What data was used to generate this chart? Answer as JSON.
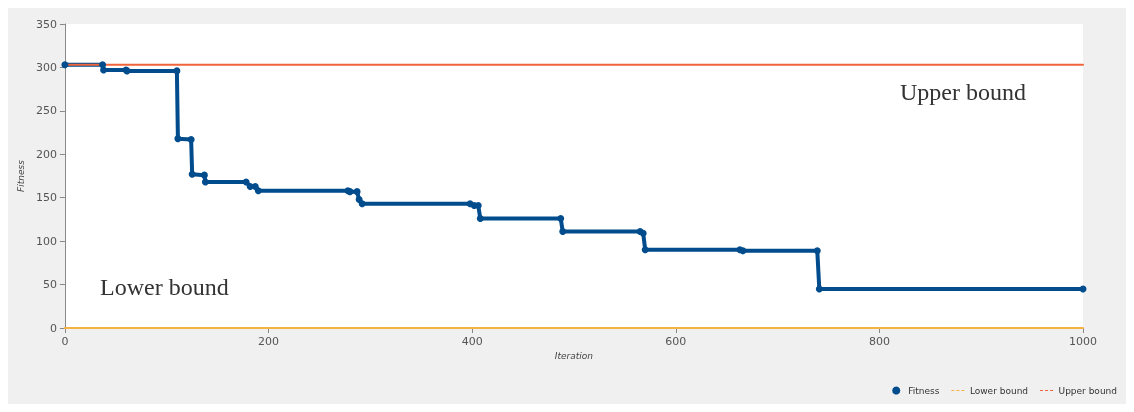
{
  "chart_data": {
    "type": "line",
    "xlabel": "Iteration",
    "ylabel": "Fitness",
    "xlim": [
      0,
      1000
    ],
    "xticks": [
      0,
      200,
      400,
      600,
      800,
      1000
    ],
    "ylim": [
      0,
      350
    ],
    "yticks": [
      0,
      50,
      100,
      150,
      200,
      250,
      300,
      350
    ],
    "grid": false,
    "legend": "bottom right",
    "marker": "circle",
    "series": [
      {
        "name": "Fitness",
        "color": "#004c8c",
        "x": [
          0,
          37,
          38,
          60,
          61,
          110,
          111,
          124,
          125,
          137,
          138,
          178,
          182,
          187,
          190,
          278,
          280,
          287,
          289,
          292,
          398,
          402,
          406,
          408,
          487,
          489,
          565,
          568,
          570,
          663,
          666,
          739,
          741,
          1000
        ],
        "values": [
          303,
          303,
          297,
          297,
          296,
          296,
          218,
          217,
          177,
          176,
          168,
          168,
          163,
          163,
          158,
          158,
          157,
          157,
          148,
          143,
          143,
          141,
          141,
          126,
          126,
          111,
          111,
          109,
          90,
          90,
          89,
          89,
          45,
          45
        ]
      },
      {
        "name": "Lower bound",
        "color": "#f5b342",
        "type": "line",
        "marker": "none",
        "x": [
          0,
          1000
        ],
        "values": [
          0,
          0
        ]
      },
      {
        "name": "Upper bound",
        "color": "#f0643c",
        "type": "line",
        "marker": "none",
        "x": [
          0,
          1000
        ],
        "values": [
          303,
          303
        ]
      }
    ],
    "annotations": [
      "Upper bound",
      "Lower bound"
    ]
  }
}
